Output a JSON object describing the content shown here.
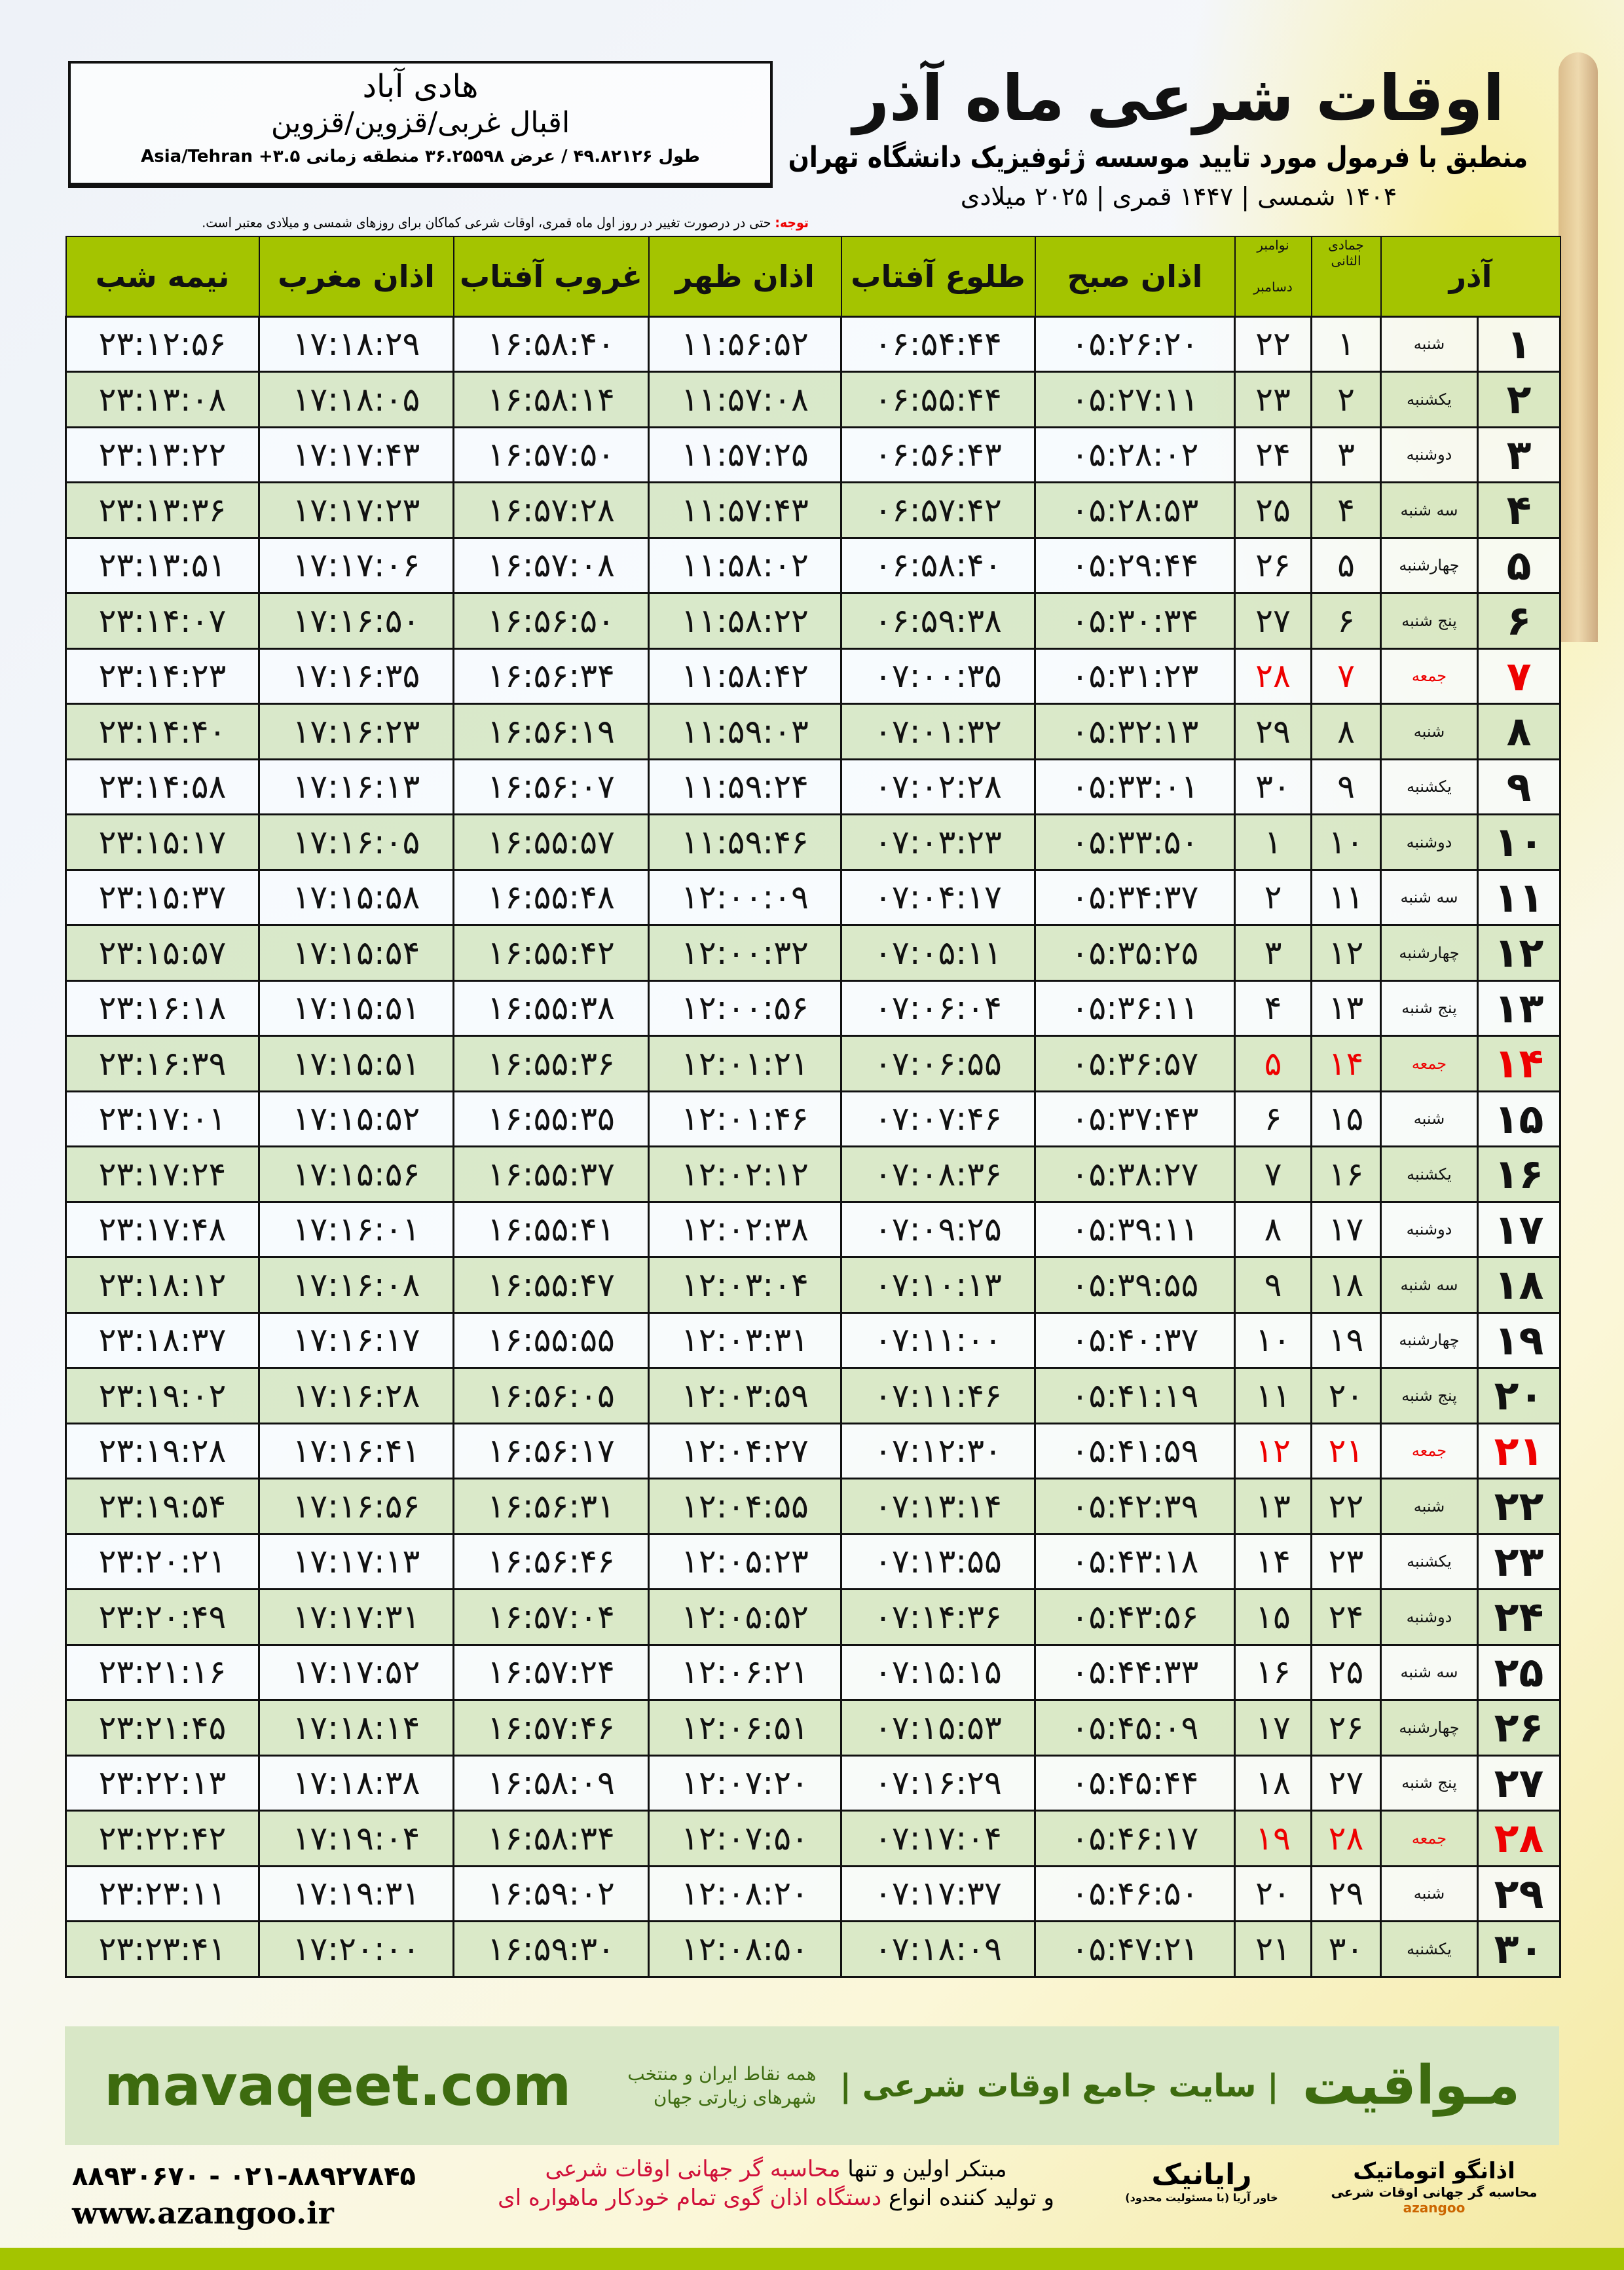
{
  "location": {
    "city": "هادی آباد",
    "province": "اقبال غربی/قزوین/قزوین",
    "coords": "طول ۴۹.۸۲۱۲۶ / عرض ۳۶.۲۵۵۹۸ منطقه زمانی ۳.۵+ Asia/Tehran"
  },
  "header": {
    "title": "اوقات شرعی ماه آذر",
    "subtitle": "منطبق با فرمول مورد تایید موسسه ژئوفیزیک دانشگاه تهران",
    "dates": "۱۴۰۴ شمسی | ۱۴۴۷ قمری | ۲۰۲۵ میلادی"
  },
  "note": {
    "label": "توجه:",
    "text": " حتی در درصورت تغییر در روز اول ماه قمری، اوقات شرعی کماکان برای روزهای شمسی و میلادی معتبر است."
  },
  "columns": {
    "azar": "آذر",
    "jumada": "جمادی الثانی",
    "nov": "نوامبر",
    "dec": "دسامبر",
    "fajr": "اذان صبح",
    "sunrise": "طلوع آفتاب",
    "dhuhr": "اذان ظهر",
    "sunset": "غروب آفتاب",
    "maghrib": "اذان مغرب",
    "midnight": "نیمه شب"
  },
  "colors": {
    "header_green": "#a4c400",
    "row_green": "#d6e7c4",
    "holiday_red": "#e00000",
    "brand_green": "#3d6b0f"
  },
  "rows": [
    [
      "۱",
      "شنبه",
      "۱",
      "۲۲",
      "۰۵:۲۶:۲۰",
      "۰۶:۵۴:۴۴",
      "۱۱:۵۶:۵۲",
      "۱۶:۵۸:۴۰",
      "۱۷:۱۸:۲۹",
      "۲۳:۱۲:۵۶",
      false
    ],
    [
      "۲",
      "یکشنبه",
      "۲",
      "۲۳",
      "۰۵:۲۷:۱۱",
      "۰۶:۵۵:۴۴",
      "۱۱:۵۷:۰۸",
      "۱۶:۵۸:۱۴",
      "۱۷:۱۸:۰۵",
      "۲۳:۱۳:۰۸",
      false
    ],
    [
      "۳",
      "دوشنبه",
      "۳",
      "۲۴",
      "۰۵:۲۸:۰۲",
      "۰۶:۵۶:۴۳",
      "۱۱:۵۷:۲۵",
      "۱۶:۵۷:۵۰",
      "۱۷:۱۷:۴۳",
      "۲۳:۱۳:۲۲",
      false
    ],
    [
      "۴",
      "سه شنبه",
      "۴",
      "۲۵",
      "۰۵:۲۸:۵۳",
      "۰۶:۵۷:۴۲",
      "۱۱:۵۷:۴۳",
      "۱۶:۵۷:۲۸",
      "۱۷:۱۷:۲۳",
      "۲۳:۱۳:۳۶",
      false
    ],
    [
      "۵",
      "چهارشنبه",
      "۵",
      "۲۶",
      "۰۵:۲۹:۴۴",
      "۰۶:۵۸:۴۰",
      "۱۱:۵۸:۰۲",
      "۱۶:۵۷:۰۸",
      "۱۷:۱۷:۰۶",
      "۲۳:۱۳:۵۱",
      false
    ],
    [
      "۶",
      "پنج شنبه",
      "۶",
      "۲۷",
      "۰۵:۳۰:۳۴",
      "۰۶:۵۹:۳۸",
      "۱۱:۵۸:۲۲",
      "۱۶:۵۶:۵۰",
      "۱۷:۱۶:۵۰",
      "۲۳:۱۴:۰۷",
      false
    ],
    [
      "۷",
      "جمعه",
      "۷",
      "۲۸",
      "۰۵:۳۱:۲۳",
      "۰۷:۰۰:۳۵",
      "۱۱:۵۸:۴۲",
      "۱۶:۵۶:۳۴",
      "۱۷:۱۶:۳۵",
      "۲۳:۱۴:۲۳",
      true
    ],
    [
      "۸",
      "شنبه",
      "۸",
      "۲۹",
      "۰۵:۳۲:۱۳",
      "۰۷:۰۱:۳۲",
      "۱۱:۵۹:۰۳",
      "۱۶:۵۶:۱۹",
      "۱۷:۱۶:۲۳",
      "۲۳:۱۴:۴۰",
      false
    ],
    [
      "۹",
      "یکشنبه",
      "۹",
      "۳۰",
      "۰۵:۳۳:۰۱",
      "۰۷:۰۲:۲۸",
      "۱۱:۵۹:۲۴",
      "۱۶:۵۶:۰۷",
      "۱۷:۱۶:۱۳",
      "۲۳:۱۴:۵۸",
      false
    ],
    [
      "۱۰",
      "دوشنبه",
      "۱۰",
      "۱",
      "۰۵:۳۳:۵۰",
      "۰۷:۰۳:۲۳",
      "۱۱:۵۹:۴۶",
      "۱۶:۵۵:۵۷",
      "۱۷:۱۶:۰۵",
      "۲۳:۱۵:۱۷",
      false
    ],
    [
      "۱۱",
      "سه شنبه",
      "۱۱",
      "۲",
      "۰۵:۳۴:۳۷",
      "۰۷:۰۴:۱۷",
      "۱۲:۰۰:۰۹",
      "۱۶:۵۵:۴۸",
      "۱۷:۱۵:۵۸",
      "۲۳:۱۵:۳۷",
      false
    ],
    [
      "۱۲",
      "چهارشنبه",
      "۱۲",
      "۳",
      "۰۵:۳۵:۲۵",
      "۰۷:۰۵:۱۱",
      "۱۲:۰۰:۳۲",
      "۱۶:۵۵:۴۲",
      "۱۷:۱۵:۵۴",
      "۲۳:۱۵:۵۷",
      false
    ],
    [
      "۱۳",
      "پنج شنبه",
      "۱۳",
      "۴",
      "۰۵:۳۶:۱۱",
      "۰۷:۰۶:۰۴",
      "۱۲:۰۰:۵۶",
      "۱۶:۵۵:۳۸",
      "۱۷:۱۵:۵۱",
      "۲۳:۱۶:۱۸",
      false
    ],
    [
      "۱۴",
      "جمعه",
      "۱۴",
      "۵",
      "۰۵:۳۶:۵۷",
      "۰۷:۰۶:۵۵",
      "۱۲:۰۱:۲۱",
      "۱۶:۵۵:۳۶",
      "۱۷:۱۵:۵۱",
      "۲۳:۱۶:۳۹",
      true
    ],
    [
      "۱۵",
      "شنبه",
      "۱۵",
      "۶",
      "۰۵:۳۷:۴۳",
      "۰۷:۰۷:۴۶",
      "۱۲:۰۱:۴۶",
      "۱۶:۵۵:۳۵",
      "۱۷:۱۵:۵۲",
      "۲۳:۱۷:۰۱",
      false
    ],
    [
      "۱۶",
      "یکشنبه",
      "۱۶",
      "۷",
      "۰۵:۳۸:۲۷",
      "۰۷:۰۸:۳۶",
      "۱۲:۰۲:۱۲",
      "۱۶:۵۵:۳۷",
      "۱۷:۱۵:۵۶",
      "۲۳:۱۷:۲۴",
      false
    ],
    [
      "۱۷",
      "دوشنبه",
      "۱۷",
      "۸",
      "۰۵:۳۹:۱۱",
      "۰۷:۰۹:۲۵",
      "۱۲:۰۲:۳۸",
      "۱۶:۵۵:۴۱",
      "۱۷:۱۶:۰۱",
      "۲۳:۱۷:۴۸",
      false
    ],
    [
      "۱۸",
      "سه شنبه",
      "۱۸",
      "۹",
      "۰۵:۳۹:۵۵",
      "۰۷:۱۰:۱۳",
      "۱۲:۰۳:۰۴",
      "۱۶:۵۵:۴۷",
      "۱۷:۱۶:۰۸",
      "۲۳:۱۸:۱۲",
      false
    ],
    [
      "۱۹",
      "چهارشنبه",
      "۱۹",
      "۱۰",
      "۰۵:۴۰:۳۷",
      "۰۷:۱۱:۰۰",
      "۱۲:۰۳:۳۱",
      "۱۶:۵۵:۵۵",
      "۱۷:۱۶:۱۷",
      "۲۳:۱۸:۳۷",
      false
    ],
    [
      "۲۰",
      "پنج شنبه",
      "۲۰",
      "۱۱",
      "۰۵:۴۱:۱۹",
      "۰۷:۱۱:۴۶",
      "۱۲:۰۳:۵۹",
      "۱۶:۵۶:۰۵",
      "۱۷:۱۶:۲۸",
      "۲۳:۱۹:۰۲",
      false
    ],
    [
      "۲۱",
      "جمعه",
      "۲۱",
      "۱۲",
      "۰۵:۴۱:۵۹",
      "۰۷:۱۲:۳۰",
      "۱۲:۰۴:۲۷",
      "۱۶:۵۶:۱۷",
      "۱۷:۱۶:۴۱",
      "۲۳:۱۹:۲۸",
      true
    ],
    [
      "۲۲",
      "شنبه",
      "۲۲",
      "۱۳",
      "۰۵:۴۲:۳۹",
      "۰۷:۱۳:۱۴",
      "۱۲:۰۴:۵۵",
      "۱۶:۵۶:۳۱",
      "۱۷:۱۶:۵۶",
      "۲۳:۱۹:۵۴",
      false
    ],
    [
      "۲۳",
      "یکشنبه",
      "۲۳",
      "۱۴",
      "۰۵:۴۳:۱۸",
      "۰۷:۱۳:۵۵",
      "۱۲:۰۵:۲۳",
      "۱۶:۵۶:۴۶",
      "۱۷:۱۷:۱۳",
      "۲۳:۲۰:۲۱",
      false
    ],
    [
      "۲۴",
      "دوشنبه",
      "۲۴",
      "۱۵",
      "۰۵:۴۳:۵۶",
      "۰۷:۱۴:۳۶",
      "۱۲:۰۵:۵۲",
      "۱۶:۵۷:۰۴",
      "۱۷:۱۷:۳۱",
      "۲۳:۲۰:۴۹",
      false
    ],
    [
      "۲۵",
      "سه شنبه",
      "۲۵",
      "۱۶",
      "۰۵:۴۴:۳۳",
      "۰۷:۱۵:۱۵",
      "۱۲:۰۶:۲۱",
      "۱۶:۵۷:۲۴",
      "۱۷:۱۷:۵۲",
      "۲۳:۲۱:۱۶",
      false
    ],
    [
      "۲۶",
      "چهارشنبه",
      "۲۶",
      "۱۷",
      "۰۵:۴۵:۰۹",
      "۰۷:۱۵:۵۳",
      "۱۲:۰۶:۵۱",
      "۱۶:۵۷:۴۶",
      "۱۷:۱۸:۱۴",
      "۲۳:۲۱:۴۵",
      false
    ],
    [
      "۲۷",
      "پنج شنبه",
      "۲۷",
      "۱۸",
      "۰۵:۴۵:۴۴",
      "۰۷:۱۶:۲۹",
      "۱۲:۰۷:۲۰",
      "۱۶:۵۸:۰۹",
      "۱۷:۱۸:۳۸",
      "۲۳:۲۲:۱۳",
      false
    ],
    [
      "۲۸",
      "جمعه",
      "۲۸",
      "۱۹",
      "۰۵:۴۶:۱۷",
      "۰۷:۱۷:۰۴",
      "۱۲:۰۷:۵۰",
      "۱۶:۵۸:۳۴",
      "۱۷:۱۹:۰۴",
      "۲۳:۲۲:۴۲",
      true
    ],
    [
      "۲۹",
      "شنبه",
      "۲۹",
      "۲۰",
      "۰۵:۴۶:۵۰",
      "۰۷:۱۷:۳۷",
      "۱۲:۰۸:۲۰",
      "۱۶:۵۹:۰۲",
      "۱۷:۱۹:۳۱",
      "۲۳:۲۳:۱۱",
      false
    ],
    [
      "۳۰",
      "یکشنبه",
      "۳۰",
      "۲۱",
      "۰۵:۴۷:۲۱",
      "۰۷:۱۸:۰۹",
      "۱۲:۰۸:۵۰",
      "۱۶:۵۹:۳۰",
      "۱۷:۲۰:۰۰",
      "۲۳:۲۳:۴۱",
      false
    ]
  ],
  "banner": {
    "brand": "مـواقیت",
    "tagline": "| سایت جامع اوقات شرعی |",
    "tagline2": "همه نقاط ایران و منتخب شهرهای زیارتی جهان",
    "url": "mavaqeet.com"
  },
  "footer": {
    "logo1": "اذانگو اتوماتیک",
    "logo1_sub": "محاسبه گر جهانی اوقات شرعی",
    "logo1_en": "azangoo",
    "logo2": "رایانیک",
    "logo2_sub": "خاور آریا (با مسئولیت محدود)",
    "line1_a": "مبتکر اولین و تنها ",
    "line1_b": "محاسبه گر جهانی اوقات شرعی",
    "line2_a": "و تولید کننده انواع ",
    "line2_b": "دستگاه اذان گوی تمام خودکار ماهواره ای",
    "phone": "۰۲۱-۸۸۹۲۷۸۴۵ - ۸۸۹۳۰۶۷۰",
    "website": "www.azangoo.ir"
  }
}
